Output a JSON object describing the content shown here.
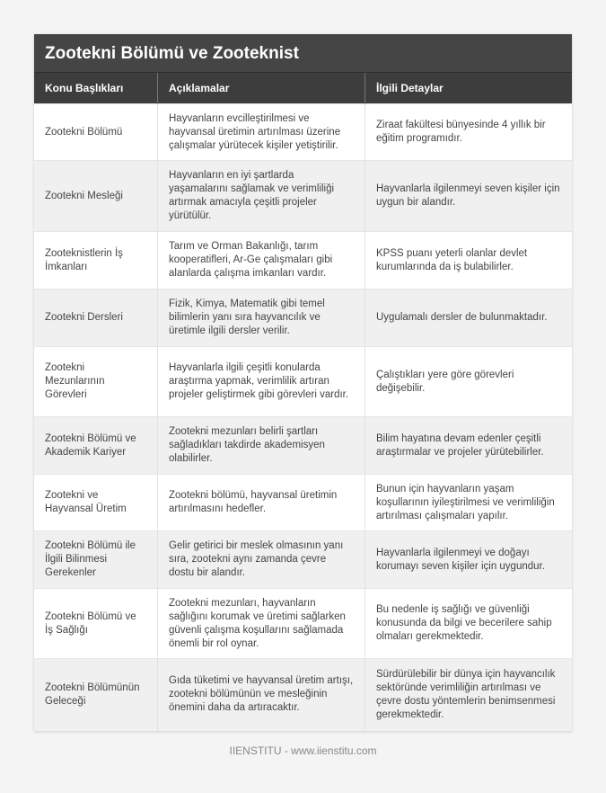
{
  "title": "Zootekni Bölümü ve Zooteknist",
  "headers": [
    "Konu Başlıkları",
    "Açıklamalar",
    "İlgili Detaylar"
  ],
  "rows": [
    [
      "Zootekni Bölümü",
      "Hayvanların evcilleştirilmesi ve hayvansal üretimin artırılması üzerine çalışmalar yürütecek kişiler yetiştirilir.",
      "Ziraat fakültesi bünyesinde 4 yıllık bir eğitim programıdır."
    ],
    [
      "Zootekni Mesleği",
      "Hayvanların en iyi şartlarda yaşamalarını sağlamak ve verimliliği artırmak amacıyla çeşitli projeler yürütülür.",
      "Hayvanlarla ilgilenmeyi seven kişiler için uygun bir alandır."
    ],
    [
      "Zooteknistlerin İş İmkanları",
      "Tarım ve Orman Bakanlığı, tarım kooperatifleri, Ar-Ge çalışmaları gibi alanlarda çalışma imkanları vardır.",
      "KPSS puanı yeterli olanlar devlet kurumlarında da iş bulabilirler."
    ],
    [
      "Zootekni Dersleri",
      "Fizik, Kimya, Matematik gibi temel bilimlerin yanı sıra hayvancılık ve üretimle ilgili dersler verilir.",
      "Uygulamalı dersler de bulunmaktadır."
    ],
    [
      "Zootekni Mezunlarının Görevleri",
      "Hayvanlarla ilgili çeşitli konularda araştırma yapmak, verimlilik artıran projeler geliştirmek gibi görevleri vardır.",
      "Çalıştıkları yere göre görevleri değişebilir."
    ],
    [
      "Zootekni Bölümü ve Akademik Kariyer",
      "Zootekni mezunları belirli şartları sağladıkları takdirde akademisyen olabilirler.",
      "Bilim hayatına devam edenler çeşitli araştırmalar ve projeler yürütebilirler."
    ],
    [
      "Zootekni ve Hayvansal Üretim",
      "Zootekni bölümü, hayvansal üretimin artırılmasını hedefler.",
      "Bunun için hayvanların yaşam koşullarının iyileştirilmesi ve verimliliğin artırılması çalışmaları yapılır."
    ],
    [
      "Zootekni Bölümü ile İlgili Bilinmesi Gerekenler",
      "Gelir getirici bir meslek olmasının yanı sıra, zootekni aynı zamanda çevre dostu bir alandır.",
      "Hayvanlarla ilgilenmeyi ve doğayı korumayı seven kişiler için uygundur."
    ],
    [
      "Zootekni Bölümü ve İş Sağlığı",
      "Zootekni mezunları, hayvanların sağlığını korumak ve üretimi sağlarken güvenli çalışma koşullarını sağlamada önemli bir rol oynar.",
      "Bu nedenle iş sağlığı ve güvenliği konusunda da bilgi ve becerilere sahip olmaları gerekmektedir."
    ],
    [
      "Zootekni Bölümünün Geleceği",
      "Gıda tüketimi ve hayvansal üretim artışı, zootekni bölümünün ve mesleğinin önemini daha da artıracaktır.",
      "Sürdürülebilir bir dünya için hayvancılık sektöründe verimliliğin artırılması ve çevre dostu yöntemlerin benimsenmesi gerekmektedir."
    ]
  ],
  "footer": "IIENSTITU - www.iienstitu.com"
}
